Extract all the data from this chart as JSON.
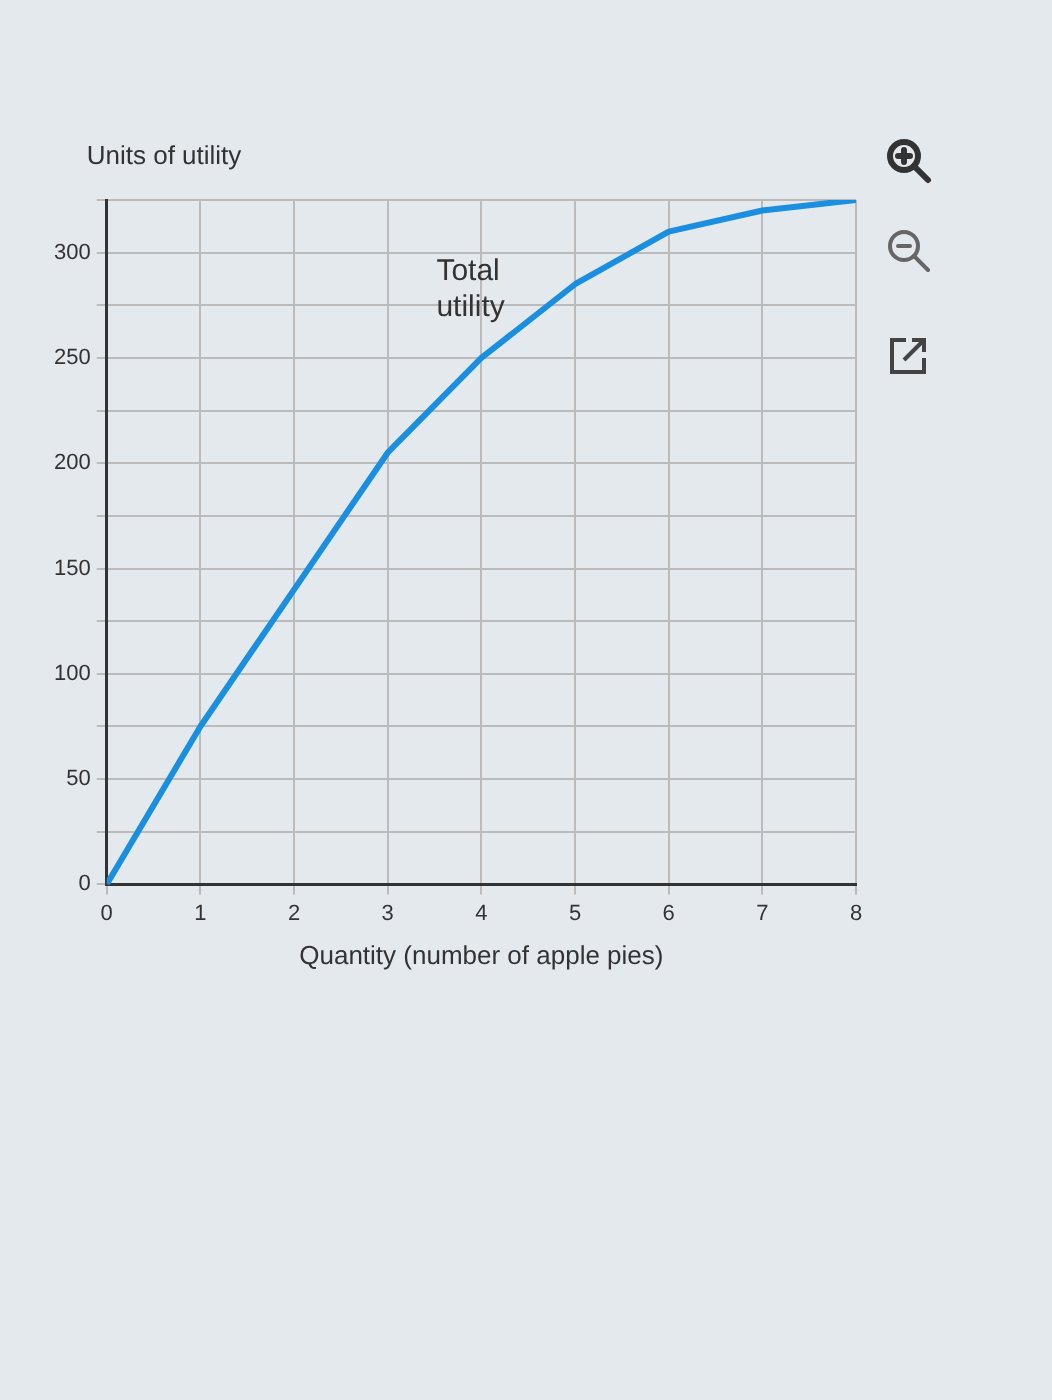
{
  "chart_data": {
    "type": "line",
    "ylabel": "Units of utility",
    "xlabel": "Quantity (number of apple pies)",
    "x": [
      0,
      1,
      2,
      3,
      4,
      5,
      6,
      7,
      8
    ],
    "series": [
      {
        "color": "#1a8fe0",
        "values": [
          0,
          75,
          140,
          205,
          250,
          285,
          310,
          320,
          325
        ]
      }
    ],
    "xlim": [
      0,
      8
    ],
    "xticks": [
      0,
      1,
      2,
      3,
      4,
      5,
      6,
      7,
      8
    ],
    "ylim": [
      0,
      325
    ],
    "yticks": [
      0,
      {
        "value": 25,
        "label": null
      },
      50,
      {
        "value": 75,
        "label": null
      },
      100,
      {
        "value": 125,
        "label": null
      },
      150,
      {
        "value": 175,
        "label": null
      },
      200,
      {
        "value": 225,
        "label": null
      },
      250,
      {
        "value": 275,
        "label": null
      },
      300,
      {
        "value": 325,
        "label": null
      }
    ],
    "annotations": [
      "Total utility"
    ],
    "grid": true,
    "marker": "none",
    "line_style": "solid",
    "legend": false
  }
}
